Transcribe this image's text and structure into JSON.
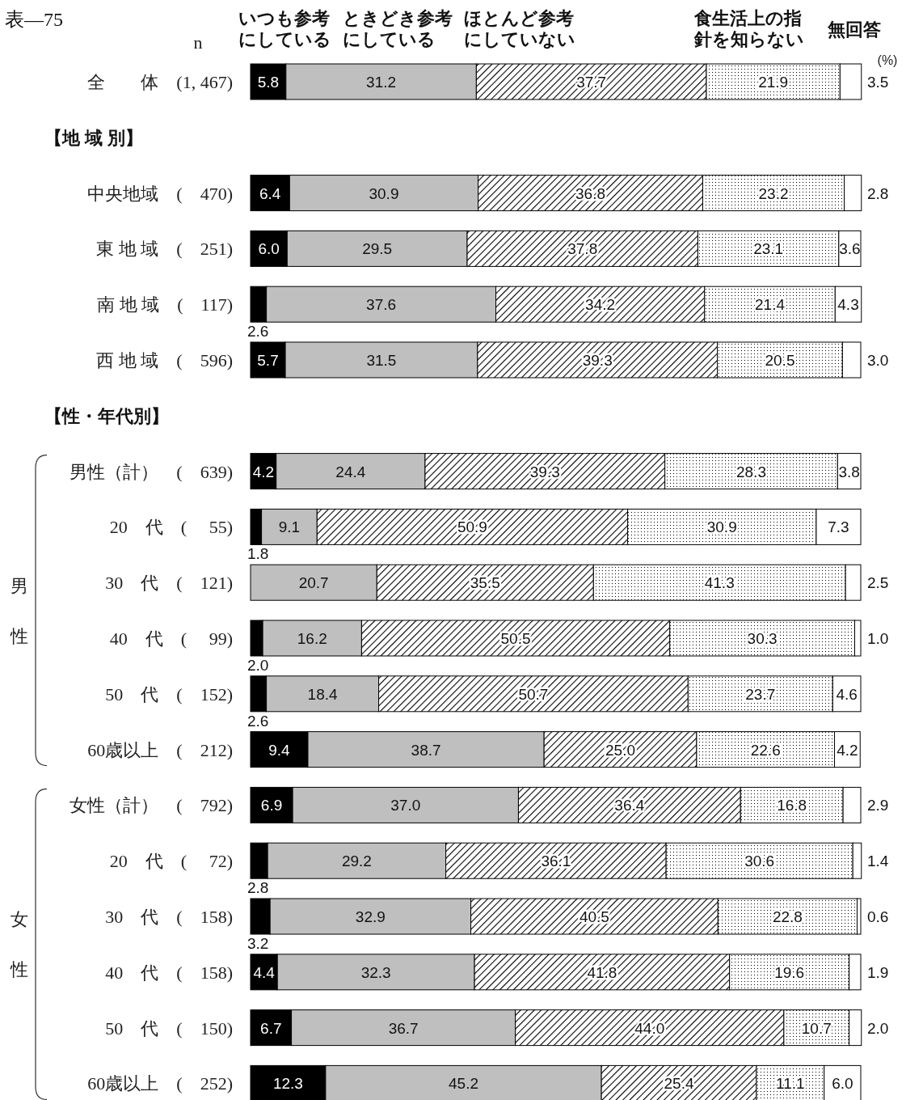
{
  "chart_data": {
    "type": "bar",
    "orientation": "horizontal",
    "stacked": true,
    "title": "表—75",
    "categories": [
      "全　　体　(1, 467)",
      null,
      "中央地域　(　470)",
      "東 地 域　(　251)",
      "南 地 域　(　117)",
      "西 地 域　(　596)",
      null,
      "男性（計）　(　639)",
      "20　代　(　 55)",
      "30　代　(　121)",
      "40　代　(　 99)",
      "50　代　(　152)",
      "60歳以上　(　212)",
      "女性（計）　(　792)",
      "20　代　(　 72)",
      "30　代　(　158)",
      "40　代　(　158)",
      "50　代　(　150)",
      "60歳以上　(　252)"
    ],
    "series": [
      {
        "name": "いつも参考にしている",
        "color": "#000000",
        "values": [
          5.8,
          null,
          6.4,
          6.0,
          2.6,
          5.7,
          null,
          4.2,
          1.8,
          null,
          2.0,
          2.6,
          9.4,
          6.9,
          2.8,
          3.2,
          4.4,
          6.7,
          12.3
        ],
        "value_labels": [
          "5.8",
          null,
          "6.4",
          "6.0",
          "2.6",
          "5.7",
          null,
          "4.2",
          "1.8",
          null,
          "2.0",
          "2.6",
          "9.4",
          "6.9",
          "2.8",
          "3.2",
          "4.4",
          "6.7",
          "12.3"
        ]
      },
      {
        "name": "ときどき参考にしている",
        "color": "#bfbfbf",
        "values": [
          31.2,
          null,
          30.9,
          29.5,
          37.6,
          31.5,
          null,
          24.4,
          9.1,
          20.7,
          16.2,
          18.4,
          38.7,
          37.0,
          29.2,
          32.9,
          32.3,
          36.7,
          45.2
        ],
        "value_labels": [
          "31.2",
          null,
          "30.9",
          "29.5",
          "37.6",
          "31.5",
          null,
          "24.4",
          "9.1",
          "20.7",
          "16.2",
          "18.4",
          "38.7",
          "37.0",
          "29.2",
          "32.9",
          "32.3",
          "36.7",
          "45.2"
        ]
      },
      {
        "name": "ほとんど参考にしていない",
        "color": "#000000",
        "values": [
          37.7,
          null,
          36.8,
          37.8,
          34.2,
          39.3,
          null,
          39.3,
          50.9,
          35.5,
          50.5,
          50.7,
          25.0,
          36.4,
          36.1,
          40.5,
          41.8,
          44.0,
          25.4
        ],
        "value_labels": [
          "37.7",
          null,
          "36.8",
          "37.8",
          "34.2",
          "39.3",
          null,
          "39.3",
          "50.9",
          "35.5",
          "50.5",
          "50.7",
          "25.0",
          "36.4",
          "36.1",
          "40.5",
          "41.8",
          "44.0",
          "25.4"
        ]
      },
      {
        "name": "食生活上の指針を知らない",
        "color": "#000000",
        "values": [
          21.9,
          null,
          23.2,
          23.1,
          21.4,
          20.5,
          null,
          28.3,
          30.9,
          41.3,
          30.3,
          23.7,
          22.6,
          16.8,
          30.6,
          22.8,
          19.6,
          10.7,
          11.1
        ],
        "value_labels": [
          "21.9",
          null,
          "23.2",
          "23.1",
          "21.4",
          "20.5",
          null,
          "28.3",
          "30.9",
          "41.3",
          "30.3",
          "23.7",
          "22.6",
          "16.8",
          "30.6",
          "22.8",
          "19.6",
          "10.7",
          "11.1"
        ]
      },
      {
        "name": "無回答",
        "color": "#ffffff",
        "values": [
          3.5,
          null,
          2.8,
          3.6,
          4.3,
          3.0,
          null,
          3.8,
          7.3,
          2.5,
          1.0,
          4.6,
          4.2,
          2.9,
          1.4,
          0.6,
          1.9,
          2.0,
          6.0
        ],
        "value_labels": [
          "3.5",
          null,
          "2.8",
          "3.6",
          "4.3",
          "3.0",
          null,
          "3.8",
          "7.3",
          "2.5",
          "1.0",
          "4.6",
          "4.2",
          "2.9",
          "1.4",
          "0.6",
          "1.9",
          "2.0",
          "6.0"
        ]
      }
    ],
    "xlim": [
      0,
      100
    ],
    "legend": "top",
    "annotations": [
      "n",
      "(%)",
      "男性",
      "女性",
      "【地 域 別】",
      "【性・年代別】"
    ]
  }
}
